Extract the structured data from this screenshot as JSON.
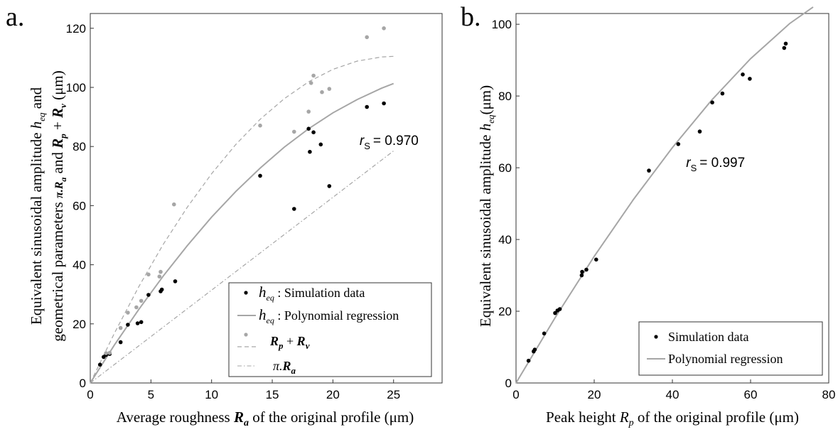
{
  "chart_data": [
    {
      "panel_label": "a.",
      "type": "scatter",
      "xlabel": {
        "pre": "Average roughness ",
        "var": "R",
        "sub": "a",
        "post": " of the original profile (μm)"
      },
      "ylabel_line1": {
        "pre": "Equivalent sinusoidal amplitude ",
        "var": "h",
        "sub": "eq",
        "post": " and"
      },
      "ylabel_line2": {
        "pre": "geometrical parameters ",
        "v1": "π.R",
        "v1sub": "a",
        "mid": " and ",
        "v2": "R",
        "v2sub": "p",
        "mid2": " + ",
        "v3": "R",
        "v3sub": "v",
        "post": " (μm)"
      },
      "xlim": [
        0,
        29
      ],
      "ylim": [
        0,
        125
      ],
      "xticks": [
        0,
        5,
        10,
        15,
        20,
        25
      ],
      "yticks": [
        0,
        20,
        40,
        60,
        80,
        100,
        120
      ],
      "annotation": {
        "text": "r",
        "sub": "S",
        "value": "= 0.970",
        "x": 22.2,
        "y": 80.5
      },
      "legend": [
        {
          "marker": "dot-black",
          "var": "h",
          "sub": "eq",
          "label": " : Simulation data"
        },
        {
          "marker": "line-solid",
          "var": "h",
          "sub": "eq",
          "label": " : Polynomial regression"
        },
        {
          "marker": "dot-gray",
          "label": "R_p + R_v"
        },
        {
          "marker": "line-dash",
          "label": ""
        },
        {
          "marker": "line-dashdot",
          "label": "π.R_a"
        }
      ],
      "legend_text_rpv": {
        "r1": "R",
        "s1": "p",
        "plus": " + ",
        "r2": "R",
        "s2": "v"
      },
      "legend_text_pra": {
        "pre": "π.",
        "r": "R",
        "s": "a"
      },
      "series": [
        {
          "name": "h_eq : Simulation data",
          "kind": "scatter",
          "color": "#000000",
          "points": [
            [
              0.8,
              6.2
            ],
            [
              1.1,
              8.8
            ],
            [
              1.3,
              9.5
            ],
            [
              1.6,
              9.8
            ],
            [
              2.5,
              13.8
            ],
            [
              3.1,
              19.7
            ],
            [
              3.9,
              20.2
            ],
            [
              4.2,
              20.6
            ],
            [
              4.8,
              29.8
            ],
            [
              5.8,
              31.0
            ],
            [
              5.9,
              31.6
            ],
            [
              7.0,
              34.4
            ],
            [
              14.0,
              70.1
            ],
            [
              16.8,
              58.9
            ],
            [
              18.0,
              86.0
            ],
            [
              18.1,
              78.2
            ],
            [
              18.4,
              84.8
            ],
            [
              19.0,
              80.7
            ],
            [
              19.7,
              66.6
            ],
            [
              22.8,
              93.4
            ],
            [
              24.2,
              94.6
            ]
          ]
        },
        {
          "name": "R_p + R_v",
          "kind": "scatter",
          "color": "#a6a6a6",
          "points": [
            [
              1.3,
              10.1
            ],
            [
              1.6,
              10.2
            ],
            [
              2.5,
              18.6
            ],
            [
              3.1,
              23.8
            ],
            [
              3.8,
              25.6
            ],
            [
              4.2,
              27.8
            ],
            [
              4.8,
              36.7
            ],
            [
              5.7,
              36.0
            ],
            [
              5.8,
              37.6
            ],
            [
              6.9,
              60.4
            ],
            [
              14.0,
              87.1
            ],
            [
              16.8,
              85.0
            ],
            [
              18.0,
              91.8
            ],
            [
              18.2,
              101.5
            ],
            [
              18.4,
              104.0
            ],
            [
              19.1,
              98.4
            ],
            [
              19.7,
              99.5
            ],
            [
              22.8,
              117.0
            ],
            [
              24.2,
              120.0
            ]
          ]
        },
        {
          "name": "h_eq : Polynomial regression",
          "kind": "line",
          "style": "solid",
          "color": "#a6a6a6",
          "points": [
            [
              0,
              0
            ],
            [
              2,
              12.9
            ],
            [
              4,
              24.9
            ],
            [
              6,
              36.1
            ],
            [
              8,
              46.5
            ],
            [
              10,
              56.1
            ],
            [
              12,
              64.8
            ],
            [
              14,
              72.7
            ],
            [
              16,
              79.8
            ],
            [
              18,
              86.0
            ],
            [
              20,
              91.4
            ],
            [
              22,
              95.9
            ],
            [
              24,
              99.7
            ],
            [
              25,
              101.3
            ]
          ]
        },
        {
          "name": "R_p + R_v fit",
          "kind": "line",
          "style": "dash",
          "color": "#a6a6a6",
          "points": [
            [
              0,
              0
            ],
            [
              2,
              16.9
            ],
            [
              4,
              32.6
            ],
            [
              6,
              46.8
            ],
            [
              8,
              59.5
            ],
            [
              10,
              70.8
            ],
            [
              12,
              80.7
            ],
            [
              14,
              89.2
            ],
            [
              16,
              96.2
            ],
            [
              18,
              101.9
            ],
            [
              20,
              106.1
            ],
            [
              22,
              108.9
            ],
            [
              24,
              110.3
            ],
            [
              25,
              110.5
            ]
          ]
        },
        {
          "name": "π.R_a",
          "kind": "line",
          "style": "dashdot",
          "color": "#a6a6a6",
          "points": [
            [
              0,
              0
            ],
            [
              25,
              78.5
            ]
          ]
        }
      ]
    },
    {
      "panel_label": "b.",
      "type": "scatter",
      "xlabel": {
        "pre": "Peak height ",
        "var": "R",
        "sub": "p",
        "post": " of the original profile (μm)"
      },
      "ylabel": {
        "pre": "Equivalent sinusoidal amplitude ",
        "var": "h",
        "sub": "eq",
        "post": "(μm)"
      },
      "xlim": [
        0,
        80
      ],
      "ylim": [
        0,
        103
      ],
      "xticks": [
        0,
        20,
        40,
        60,
        80
      ],
      "yticks": [
        0,
        20,
        40,
        60,
        80,
        100
      ],
      "annotation": {
        "text": "r",
        "sub": "S",
        "value": "= 0.997",
        "x": 43.5,
        "y": 60.2
      },
      "legend": [
        {
          "marker": "dot-black",
          "label": "Simulation data"
        },
        {
          "marker": "line-solid",
          "label": "Polynomial regression"
        }
      ],
      "series": [
        {
          "name": "Simulation data",
          "kind": "scatter",
          "color": "#000000",
          "points": [
            [
              3.2,
              6.2
            ],
            [
              4.5,
              8.8
            ],
            [
              4.8,
              9.3
            ],
            [
              7.2,
              13.8
            ],
            [
              10.0,
              19.5
            ],
            [
              10.6,
              20.2
            ],
            [
              11.2,
              20.6
            ],
            [
              16.8,
              30.0
            ],
            [
              16.9,
              31.0
            ],
            [
              18.0,
              31.6
            ],
            [
              20.5,
              34.4
            ],
            [
              34.0,
              59.2
            ],
            [
              41.5,
              66.6
            ],
            [
              47.0,
              70.1
            ],
            [
              50.2,
              78.2
            ],
            [
              52.8,
              80.7
            ],
            [
              58.0,
              86.0
            ],
            [
              59.8,
              84.8
            ],
            [
              68.6,
              93.4
            ],
            [
              69.0,
              94.6
            ]
          ]
        },
        {
          "name": "Polynomial regression",
          "kind": "line",
          "style": "solid",
          "color": "#a6a6a6",
          "points": [
            [
              0,
              0
            ],
            [
              10,
              18.2
            ],
            [
              20,
              35.3
            ],
            [
              30,
              51.1
            ],
            [
              40,
              65.6
            ],
            [
              50,
              78.8
            ],
            [
              60,
              90.4
            ],
            [
              70,
              100.2
            ],
            [
              76,
              104.8
            ]
          ]
        }
      ]
    }
  ]
}
